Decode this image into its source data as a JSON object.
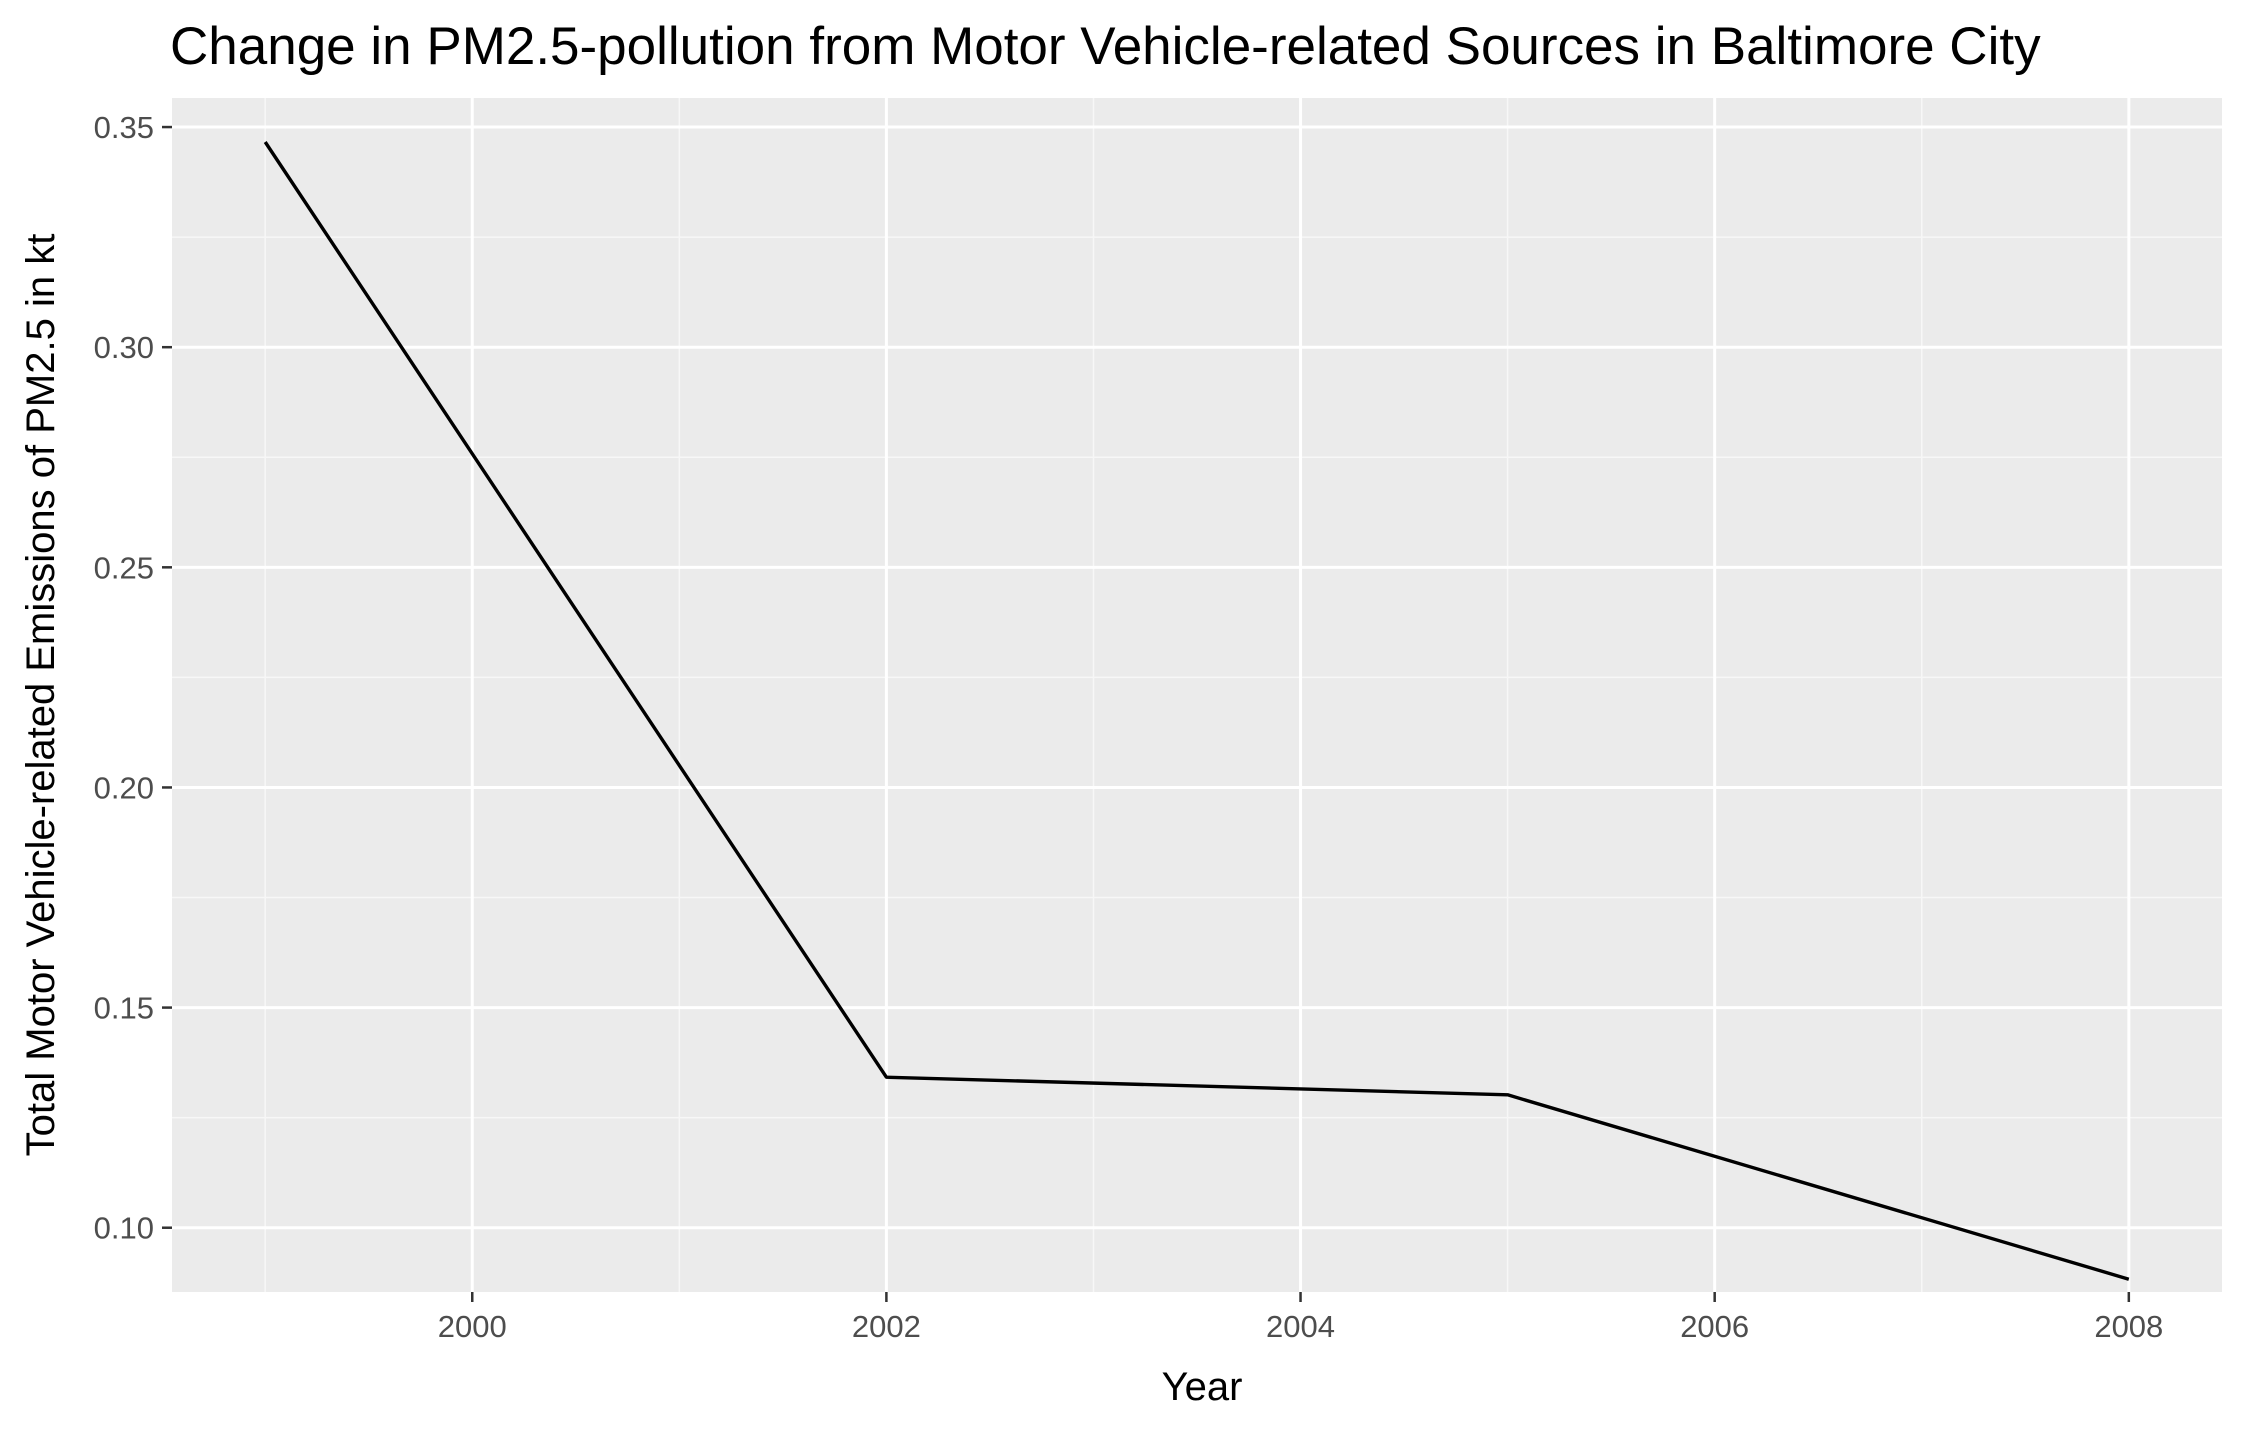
{
  "chart_data": {
    "type": "line",
    "title": "Change in PM2.5-pollution from Motor Vehicle-related Sources in Baltimore City",
    "xlabel": "Year",
    "ylabel": "Total Motor Vehicle-related Emissions of PM2.5 in kt",
    "x": [
      1999,
      2002,
      2005,
      2008
    ],
    "series": [
      {
        "values": [
          0.3466,
          0.1342,
          0.1302,
          0.0883
        ]
      }
    ],
    "xlim": [
      1998.55,
      2008.45
    ],
    "ylim": [
      0.0854,
      0.3566
    ],
    "x_ticks": [
      2000,
      2002,
      2004,
      2006,
      2008
    ],
    "x_tick_labels": [
      "2000",
      "2002",
      "2004",
      "2006",
      "2008"
    ],
    "y_ticks": [
      0.1,
      0.15,
      0.2,
      0.25,
      0.3,
      0.35
    ],
    "y_tick_labels": [
      "0.10",
      "0.15",
      "0.20",
      "0.25",
      "0.30",
      "0.35"
    ],
    "grid": true,
    "legend": "none",
    "colors": {
      "panel_background": "#ebebeb",
      "grid_major": "#ffffff",
      "grid_minor": "#f7f7f7",
      "line": "#000000",
      "tick_mark": "#333333",
      "tick_label": "#4d4d4d"
    }
  }
}
